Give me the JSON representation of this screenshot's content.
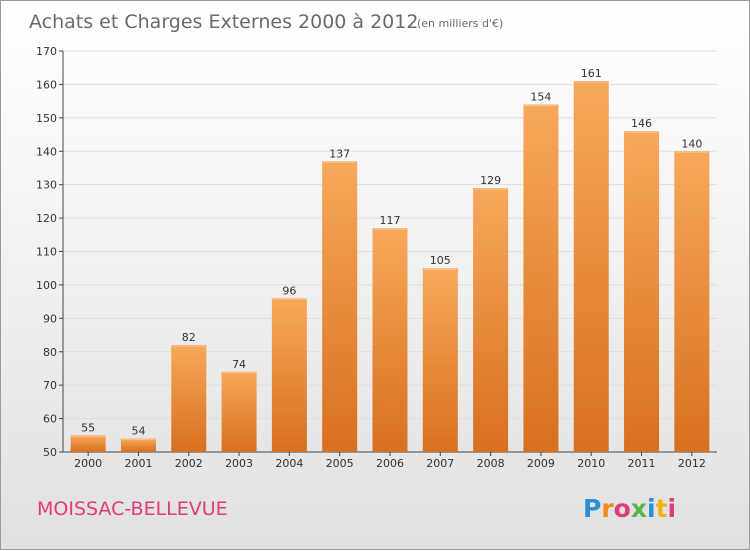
{
  "title": "Achats et Charges Externes 2000 à 2012",
  "subtitle": "(en milliers d'€)",
  "place_name": "MOISSAC-BELLEVUE",
  "logo_text": "Proxiti",
  "colors": {
    "bar_light": "#f7a85a",
    "bar_dark": "#d8701e",
    "grid": "#dddddd",
    "place": "#e03b7a"
  },
  "chart_data": {
    "type": "bar",
    "title": "Achats et Charges Externes 2000 à 2012",
    "subtitle": "(en milliers d'€)",
    "xlabel": "",
    "ylabel": "",
    "categories": [
      "2000",
      "2001",
      "2002",
      "2003",
      "2004",
      "2005",
      "2006",
      "2007",
      "2008",
      "2009",
      "2010",
      "2011",
      "2012"
    ],
    "values": [
      55,
      54,
      82,
      74,
      96,
      137,
      117,
      105,
      129,
      154,
      161,
      146,
      140
    ],
    "ylim": [
      50,
      170
    ],
    "yticks": [
      50,
      60,
      70,
      80,
      90,
      100,
      110,
      120,
      130,
      140,
      150,
      160,
      170
    ],
    "grid": true,
    "legend": "none"
  }
}
